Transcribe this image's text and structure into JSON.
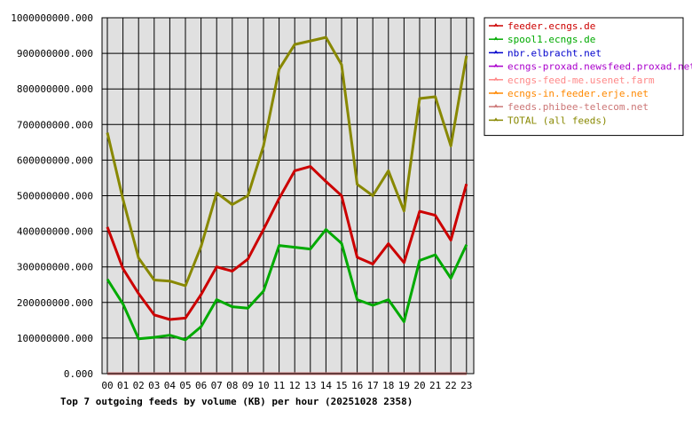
{
  "chart_data": {
    "type": "line",
    "title": "Top 7 outgoing feeds by volume (KB) per hour (20251028 2358)",
    "ylim": [
      0,
      1000000000
    ],
    "yticks": [
      0,
      100000000,
      200000000,
      300000000,
      400000000,
      500000000,
      600000000,
      700000000,
      800000000,
      900000000,
      1000000000
    ],
    "ytick_labels": [
      "0.000",
      "100000000.000",
      "200000000.000",
      "300000000.000",
      "400000000.000",
      "500000000.000",
      "600000000.000",
      "700000000.000",
      "800000000.000",
      "900000000.000",
      "1000000000.000"
    ],
    "categories": [
      "00",
      "01",
      "02",
      "03",
      "04",
      "05",
      "06",
      "07",
      "08",
      "09",
      "10",
      "11",
      "12",
      "13",
      "14",
      "15",
      "16",
      "17",
      "18",
      "19",
      "20",
      "21",
      "22",
      "23"
    ],
    "grid": true,
    "legend_position": "right",
    "series": [
      {
        "name": "feeder.ecngs.de",
        "color": "#cc0000",
        "values": [
          412000000,
          295000000,
          225000000,
          165000000,
          152000000,
          156000000,
          222000000,
          300000000,
          288000000,
          322000000,
          405000000,
          492000000,
          570000000,
          582000000,
          540000000,
          500000000,
          327000000,
          308000000,
          365000000,
          312000000,
          456000000,
          445000000,
          375000000,
          533000000
        ]
      },
      {
        "name": "spool1.ecngs.de",
        "color": "#00aa00",
        "values": [
          265000000,
          196000000,
          98000000,
          102000000,
          108000000,
          95000000,
          132000000,
          208000000,
          188000000,
          184000000,
          232000000,
          360000000,
          355000000,
          350000000,
          405000000,
          366000000,
          208000000,
          192000000,
          208000000,
          146000000,
          318000000,
          334000000,
          268000000,
          362000000
        ]
      },
      {
        "name": "nbr.elbracht.net",
        "color": "#0000cc",
        "values": [
          0,
          0,
          0,
          0,
          0,
          0,
          0,
          0,
          0,
          0,
          0,
          0,
          0,
          0,
          0,
          0,
          0,
          0,
          0,
          0,
          0,
          0,
          0,
          0
        ]
      },
      {
        "name": "ecngs-proxad.newsfeed.proxad.net",
        "color": "#aa00cc",
        "values": [
          0,
          0,
          0,
          0,
          0,
          0,
          0,
          0,
          0,
          0,
          0,
          0,
          0,
          0,
          0,
          0,
          0,
          0,
          0,
          0,
          0,
          0,
          0,
          0
        ]
      },
      {
        "name": "ecngs-feed-me.usenet.farm",
        "color": "#ff8888",
        "values": [
          0,
          0,
          0,
          0,
          0,
          0,
          0,
          0,
          0,
          0,
          0,
          0,
          0,
          0,
          0,
          0,
          0,
          0,
          0,
          0,
          0,
          0,
          0,
          0
        ]
      },
      {
        "name": "ecngs-in.feeder.erje.net",
        "color": "#ff8800",
        "values": [
          0,
          0,
          0,
          0,
          0,
          0,
          0,
          0,
          0,
          0,
          0,
          0,
          0,
          0,
          0,
          0,
          0,
          0,
          0,
          0,
          0,
          0,
          0,
          0
        ]
      },
      {
        "name": "feeds.phibee-telecom.net",
        "color": "#cc7777",
        "values": [
          0,
          0,
          0,
          0,
          0,
          0,
          0,
          0,
          0,
          0,
          0,
          0,
          0,
          0,
          0,
          0,
          0,
          0,
          0,
          0,
          0,
          0,
          0,
          0
        ]
      },
      {
        "name": "TOTAL (all feeds)",
        "color": "#888800",
        "values": [
          677000000,
          490000000,
          325000000,
          263000000,
          260000000,
          247000000,
          357000000,
          508000000,
          475000000,
          500000000,
          640000000,
          855000000,
          925000000,
          935000000,
          945000000,
          868000000,
          532000000,
          500000000,
          570000000,
          457000000,
          773000000,
          778000000,
          640000000,
          893000000
        ]
      }
    ]
  }
}
